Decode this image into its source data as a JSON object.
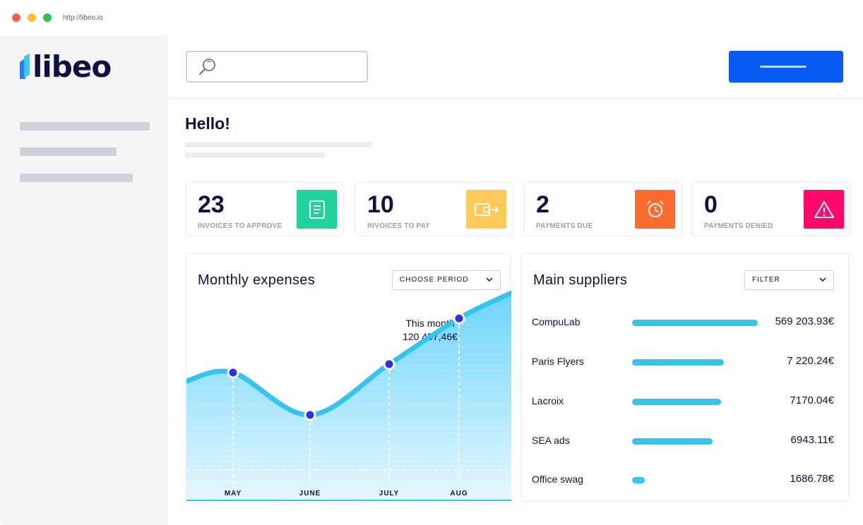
{
  "browser": {
    "url": "http://libeo.io"
  },
  "brand": {
    "name": "libeo",
    "accent": "#0a5bf5",
    "mark_colors": [
      "#2f7bff",
      "#39c9f2"
    ]
  },
  "header": {
    "search": {
      "placeholder": ""
    }
  },
  "main": {
    "greeting": "Hello!",
    "stats": [
      {
        "value": "23",
        "label": "INVOICES TO APPROVE",
        "icon": "document-icon",
        "color": "#1fd39b"
      },
      {
        "value": "10",
        "label": "INVOICES TO PAY",
        "icon": "wallet-arrow-icon",
        "color": "#fdca59"
      },
      {
        "value": "2",
        "label": "PAYMENTS DUE",
        "icon": "alarm-clock-icon",
        "color": "#ff6b2d"
      },
      {
        "value": "0",
        "label": "PAYMENTS DENIED",
        "icon": "warning-icon",
        "color": "#ff0a6c"
      }
    ],
    "expenses": {
      "title": "Monthly expenses",
      "period_label": "CHOOSE PERIOD",
      "annotation_title": "This month",
      "annotation_value": "120 457,46€"
    },
    "suppliers": {
      "title": "Main suppliers",
      "filter_label": "FILTER",
      "items": [
        {
          "name": "CompuLab",
          "value": "569 203.93€",
          "share": 1.0
        },
        {
          "name": "Paris Flyers",
          "value": "7 220.24€",
          "share": 0.73
        },
        {
          "name": "Lacroix",
          "value": "7170.04€",
          "share": 0.71
        },
        {
          "name": "SEA ads",
          "value": "6943.11€",
          "share": 0.64
        },
        {
          "name": "Office swag",
          "value": "1686.78€",
          "share": 0.1
        }
      ]
    }
  },
  "chart_data": {
    "type": "area",
    "title": "Monthly expenses",
    "categories": [
      "MAY",
      "JUNE",
      "JULY",
      "AUG"
    ],
    "x": [
      "MAY",
      "JUNE",
      "JULY",
      "AUG"
    ],
    "xlabel": "",
    "ylabel": "",
    "grid": false,
    "legend": "none",
    "line_color": "#32c5f4",
    "marker_color": "#2a2ff0",
    "series": [
      {
        "values": [
          0.55,
          0.3,
          0.6,
          0.87
        ]
      }
    ]
  }
}
